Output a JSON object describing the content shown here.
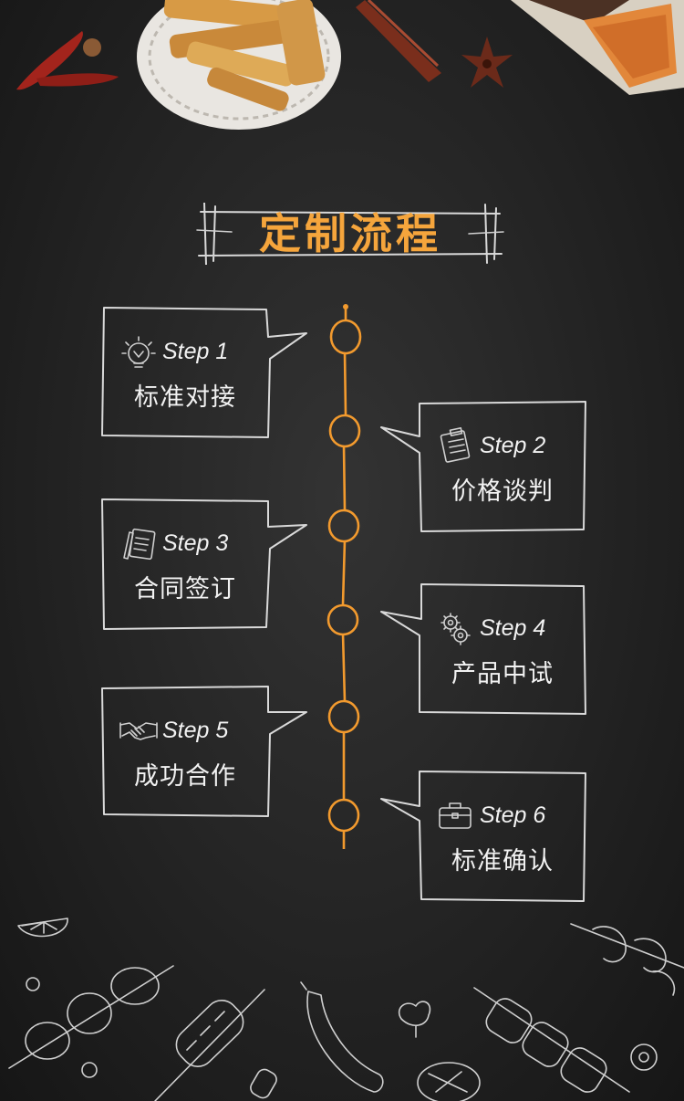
{
  "title": "定制流程",
  "steps": [
    {
      "label": "Step 1",
      "text": "标准对接",
      "icon": "lightbulb-icon"
    },
    {
      "label": "Step 2",
      "text": "价格谈判",
      "icon": "clipboard-icon"
    },
    {
      "label": "Step 3",
      "text": "合同签订",
      "icon": "contract-pen-icon"
    },
    {
      "label": "Step 4",
      "text": "产品中试",
      "icon": "gears-icon"
    },
    {
      "label": "Step 5",
      "text": "成功合作",
      "icon": "handshake-icon"
    },
    {
      "label": "Step 6",
      "text": "标准确认",
      "icon": "briefcase-icon"
    }
  ],
  "colors": {
    "accent": "#f29a2e",
    "chalk": "#d9d9d9",
    "background": "#262626"
  }
}
